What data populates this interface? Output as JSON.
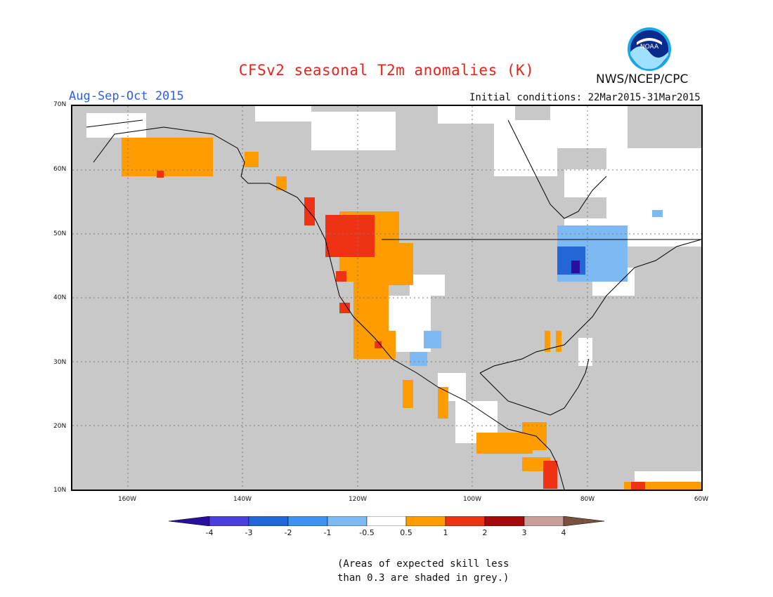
{
  "header": {
    "title": "CFSv2 seasonal T2m anomalies (K)",
    "period": "Aug-Sep-Oct 2015",
    "agency": "NWS/NCEP/CPC",
    "initial_conditions": "Initial conditions: 22Mar2015-31Mar2015",
    "logo_text": "NOAA"
  },
  "map": {
    "lat_labels": [
      "70N",
      "60N",
      "50N",
      "40N",
      "30N",
      "20N",
      "10N"
    ],
    "lon_labels": [
      "160W",
      "140W",
      "120W",
      "100W",
      "80W",
      "60W"
    ],
    "skill_mask_color": "#c8c8c8",
    "land_color": "#ffffff"
  },
  "colorbar": {
    "labels": [
      "-4",
      "-3",
      "-2",
      "-1",
      "-0.5",
      "0.5",
      "1",
      "2",
      "3",
      "4"
    ],
    "colors": [
      "#2a0f9e",
      "#4a3ee0",
      "#2366d8",
      "#3f92ef",
      "#7db9f3",
      "#ffffff",
      "#ff9d00",
      "#f03214",
      "#a50a0a",
      "#c8a09a",
      "#7a5040"
    ]
  },
  "footnote": {
    "line1": "(Areas of expected skill less",
    "line2": "than 0.3 are shaded in grey.)"
  }
}
